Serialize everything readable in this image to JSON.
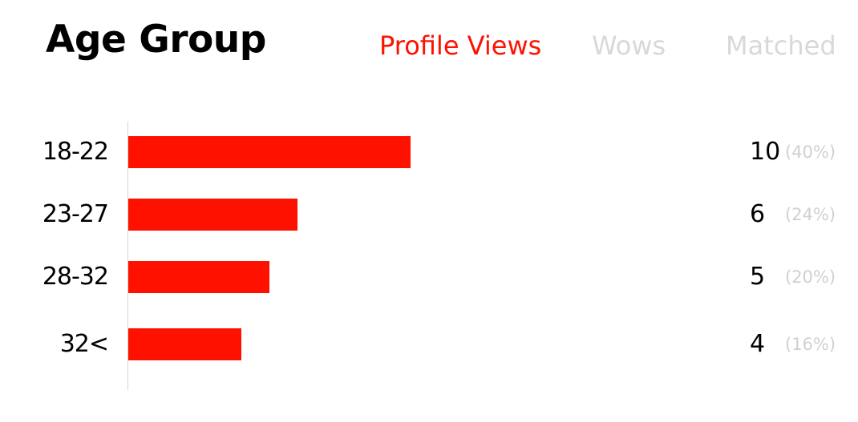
{
  "header": {
    "title": "Age Group"
  },
  "tabs": [
    {
      "label": "Profile Views",
      "active": true
    },
    {
      "label": "Wows",
      "active": false
    },
    {
      "label": "Matched",
      "active": false
    }
  ],
  "colors": {
    "accent": "#ff1100",
    "inactive_tab": "#d8d8d8",
    "percent_text": "#d0d0d0",
    "axis": "#d6d6d6"
  },
  "chart_data": {
    "type": "bar",
    "orientation": "horizontal",
    "categories": [
      "18-22",
      "23-27",
      "28-32",
      "32<"
    ],
    "values": [
      10,
      6,
      5,
      4
    ],
    "percent_labels": [
      "(40%)",
      "(24%)",
      "(20%)",
      "(16%)"
    ],
    "xlim": [
      0,
      26
    ]
  }
}
